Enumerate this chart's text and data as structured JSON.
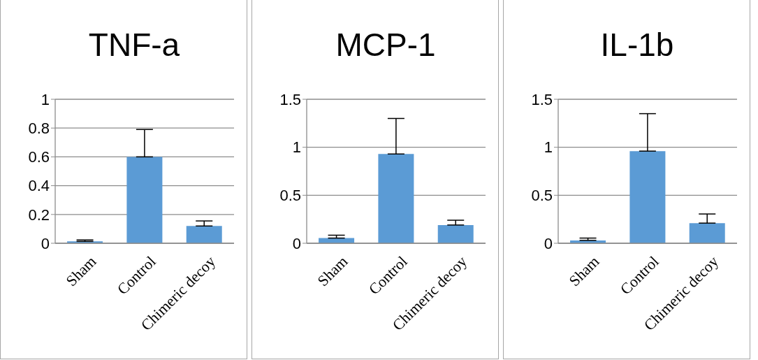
{
  "chart_data": [
    {
      "type": "bar",
      "title": "TNF-a",
      "categories": [
        "Sham",
        "Control",
        "Chimeric decoy"
      ],
      "values": [
        0.013,
        0.6,
        0.12
      ],
      "errors": [
        [
          0.013,
          0.023
        ],
        [
          0.6,
          0.79
        ],
        [
          0.12,
          0.155
        ]
      ],
      "color": "#5b9bd5",
      "ylim": [
        0,
        1
      ],
      "yticks": [
        0,
        0.2,
        0.4,
        0.6,
        0.8,
        1
      ],
      "grid": "y"
    },
    {
      "type": "bar",
      "title": "MCP-1",
      "categories": [
        "Sham",
        "Control",
        "Chimeric decoy"
      ],
      "values": [
        0.054,
        0.93,
        0.19
      ],
      "errors": [
        [
          0.054,
          0.084
        ],
        [
          0.93,
          1.3
        ],
        [
          0.19,
          0.24
        ]
      ],
      "color": "#5b9bd5",
      "ylim": [
        0,
        1.5
      ],
      "yticks": [
        0,
        0.5,
        1,
        1.5
      ],
      "grid": "y"
    },
    {
      "type": "bar",
      "title": "IL-1b",
      "categories": [
        "Sham",
        "Control",
        "Chimeric decoy"
      ],
      "values": [
        0.03,
        0.96,
        0.21
      ],
      "errors": [
        [
          0.03,
          0.054
        ],
        [
          0.96,
          1.35
        ],
        [
          0.21,
          0.305
        ]
      ],
      "color": "#5b9bd5",
      "ylim": [
        0,
        1.5
      ],
      "yticks": [
        0,
        0.5,
        1,
        1.5
      ],
      "grid": "y"
    }
  ]
}
